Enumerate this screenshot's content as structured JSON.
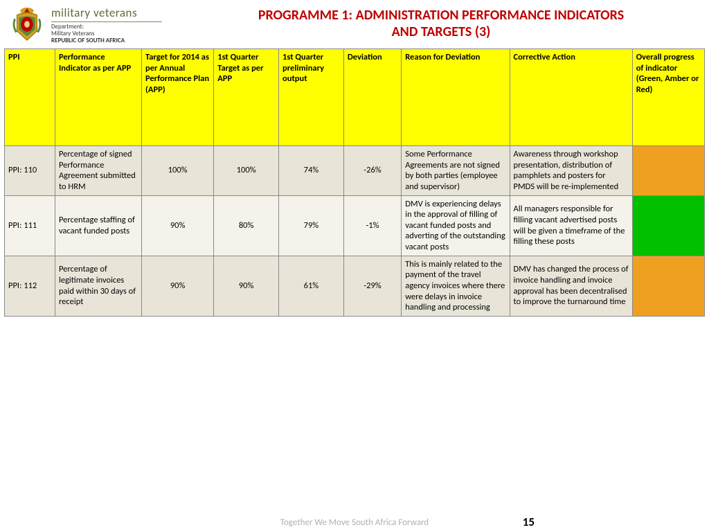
{
  "header": {
    "dept_brand": "military veterans",
    "dept_label": "Department:",
    "dept_name": "Military Veterans",
    "dept_country": "REPUBLIC OF SOUTH AFRICA",
    "title_line1": "PROGRAMME 1: ADMINISTRATION PERFORMANCE INDICATORS",
    "title_line2": "AND TARGETS (3)"
  },
  "columns": [
    "PPI",
    "Performance Indicator as per APP",
    "Target for 2014 as per Annual Performance Plan (APP)",
    "1st Quarter Target as per APP",
    "1st Quarter preliminary output",
    "Deviation",
    "Reason for Deviation",
    "Corrective Action",
    "Overall progress of indicator (Green, Amber or Red)"
  ],
  "rows": [
    {
      "ppi": "PPI: 110",
      "indicator": "Percentage of signed Performance Agreement submitted to HRM",
      "target2014": "100%",
      "q1target": "100%",
      "q1output": "74%",
      "deviation": "-26%",
      "reason": "Some Performance Agreements are not signed by both parties (employee and supervisor)",
      "corrective": "Awareness through workshop presentation, distribution of pamphlets and posters for PMDS will be re-implemented",
      "status_color": "#f0a020"
    },
    {
      "ppi": "PPI: 111",
      "indicator": "Percentage staffing of vacant funded posts",
      "target2014": "90%",
      "q1target": "80%",
      "q1output": "79%",
      "deviation": "-1%",
      "reason": "DMV is experiencing delays in the approval of filling of vacant funded posts and adverting of the outstanding vacant posts",
      "corrective": "All managers responsible for filling vacant advertised posts  will be given a timeframe of the filling these posts",
      "status_color": "#00c000"
    },
    {
      "ppi": "PPI: 112",
      "indicator": "Percentage of legitimate invoices paid within 30 days of receipt",
      "target2014": "90%",
      "q1target": "90%",
      "q1output": "61%",
      "deviation": "-29%",
      "reason": "This is mainly related to the payment of the travel agency invoices where there were delays in invoice handling and processing",
      "corrective": " DMV has changed the process of invoice handling and invoice approval has been decentralised to improve the turnaround time",
      "status_color": "#f0a020"
    }
  ],
  "footer": {
    "tagline": "Together We Move South Africa Forward",
    "page": "15"
  },
  "colors": {
    "title": "#c00000",
    "header_bg": "#ffff00",
    "row_alt_a": "#e8e5d8",
    "row_alt_b": "#f4f2ea",
    "border": "#888888"
  }
}
